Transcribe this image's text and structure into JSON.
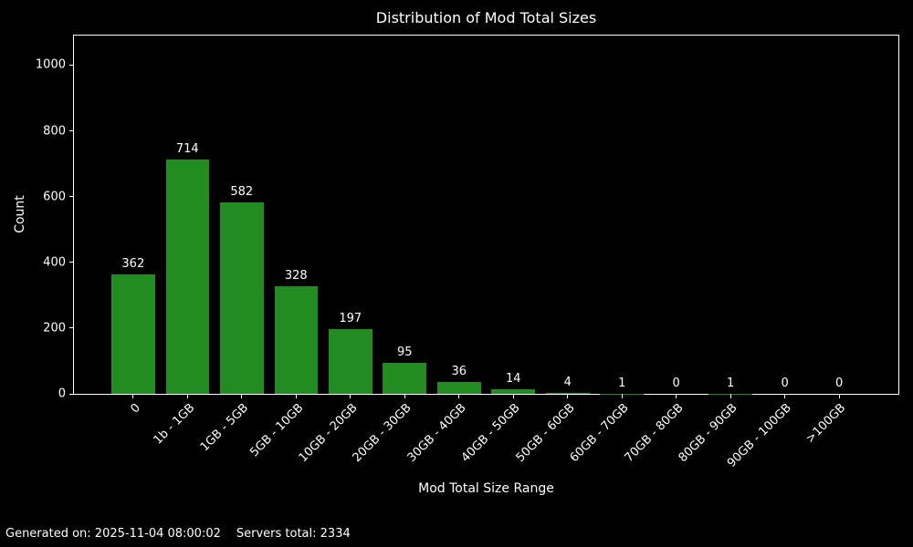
{
  "title": "Distribution of Mod Total Sizes",
  "footer": {
    "generated": "Generated on: 2025-11-04 08:00:02",
    "servers_total": "Servers total: 2334"
  },
  "chart_data": {
    "type": "bar",
    "title": "Distribution of Mod Total Sizes",
    "xlabel": "Mod Total Size Range",
    "ylabel": "Count",
    "categories": [
      "0",
      "1b - 1GB",
      "1GB - 5GB",
      "5GB - 10GB",
      "10GB - 20GB",
      "20GB - 30GB",
      "30GB - 40GB",
      "40GB - 50GB",
      "50GB - 60GB",
      "60GB - 70GB",
      "70GB - 80GB",
      "80GB - 90GB",
      "90GB - 100GB",
      ">100GB"
    ],
    "values": [
      362,
      714,
      582,
      328,
      197,
      95,
      36,
      14,
      4,
      1,
      0,
      1,
      0,
      0
    ],
    "yticks": [
      0,
      200,
      400,
      600,
      800,
      1000
    ],
    "ylim": [
      0,
      1090
    ],
    "grid": false,
    "legend": null,
    "bar_color": "#228b22",
    "background_color": "#000000",
    "text_color": "#ffffff",
    "spine_color": "#ffffff",
    "xtick_rotation_deg": 45
  }
}
